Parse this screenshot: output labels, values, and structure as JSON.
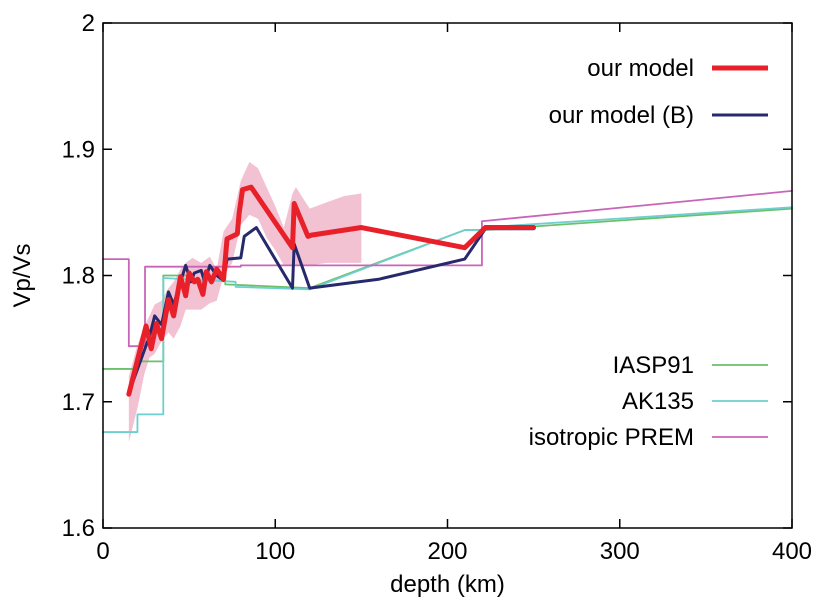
{
  "chart_data": {
    "type": "line",
    "title": "",
    "xlabel": "depth (km)",
    "ylabel": "Vp/Vs",
    "xlim": [
      0,
      400
    ],
    "ylim": [
      1.6,
      2.0
    ],
    "xticks": [
      0,
      100,
      200,
      300,
      400
    ],
    "xtick_labels": [
      "0",
      "100",
      "200",
      "300",
      "400"
    ],
    "yticks": [
      1.6,
      1.7,
      1.8,
      1.9,
      2.0
    ],
    "ytick_labels": [
      "1.6",
      "1.7",
      "1.8",
      "1.9",
      "2"
    ],
    "grid": false,
    "legend_groups": [
      {
        "placement": "top-right",
        "entries": [
          "our model",
          "our model (B)"
        ]
      },
      {
        "placement": "bottom-right",
        "entries": [
          "IASP91",
          "AK135",
          "isotropic PREM"
        ]
      }
    ],
    "uncertainty_band": {
      "name": "our model uncertainty",
      "color": "#f2c2d2",
      "x": [
        15,
        20,
        24,
        27,
        30,
        34,
        38,
        41,
        45,
        48,
        52,
        57,
        62,
        66,
        70,
        75,
        80,
        85,
        90,
        95,
        100,
        105,
        110,
        112,
        120,
        130,
        140,
        150
      ],
      "upper": [
        1.72,
        1.745,
        1.76,
        1.768,
        1.777,
        1.78,
        1.79,
        1.795,
        1.805,
        1.81,
        1.814,
        1.81,
        1.815,
        1.805,
        1.835,
        1.845,
        1.875,
        1.89,
        1.885,
        1.87,
        1.855,
        1.838,
        1.865,
        1.87,
        1.853,
        1.858,
        1.863,
        1.865
      ],
      "lower": [
        1.668,
        1.695,
        1.722,
        1.735,
        1.738,
        1.748,
        1.755,
        1.75,
        1.76,
        1.773,
        1.773,
        1.773,
        1.778,
        1.78,
        1.8,
        1.81,
        1.84,
        1.848,
        1.845,
        1.83,
        1.82,
        1.808,
        1.808,
        1.808,
        1.808,
        1.81,
        1.81,
        1.81
      ]
    },
    "series": [
      {
        "name": "our model",
        "color": "#e8202a",
        "width": 5,
        "x": [
          15,
          25,
          28,
          31,
          34,
          38,
          41,
          45,
          48,
          50,
          53,
          55,
          58,
          60,
          63,
          66,
          70,
          72,
          78,
          79,
          81,
          86,
          110,
          111,
          119,
          121,
          150,
          210,
          222,
          250
        ],
        "y": [
          1.706,
          1.76,
          1.742,
          1.762,
          1.75,
          1.781,
          1.768,
          1.799,
          1.784,
          1.802,
          1.795,
          1.797,
          1.785,
          1.803,
          1.795,
          1.805,
          1.797,
          1.829,
          1.833,
          1.849,
          1.868,
          1.87,
          1.822,
          1.857,
          1.831,
          1.832,
          1.838,
          1.822,
          1.838,
          1.838
        ]
      },
      {
        "name": "our model (B)",
        "color": "#27296d",
        "width": 3,
        "x": [
          15,
          27,
          30,
          34,
          38,
          41,
          45,
          48,
          51,
          53,
          57,
          59,
          62,
          66,
          70,
          72,
          80,
          82,
          89,
          110,
          111,
          120,
          160,
          210,
          222,
          250
        ],
        "y": [
          1.707,
          1.752,
          1.768,
          1.761,
          1.787,
          1.777,
          1.795,
          1.808,
          1.795,
          1.802,
          1.804,
          1.795,
          1.808,
          1.8,
          1.796,
          1.813,
          1.814,
          1.831,
          1.838,
          1.79,
          1.825,
          1.79,
          1.797,
          1.813,
          1.837,
          1.837
        ]
      },
      {
        "name": "IASP91",
        "color": "#6cc06c",
        "width": 1.8,
        "x": [
          0,
          20,
          20,
          35,
          35,
          50,
          50,
          71,
          71,
          120,
          120,
          210,
          210,
          220,
          220,
          400
        ],
        "y": [
          1.726,
          1.726,
          1.732,
          1.732,
          1.8,
          1.8,
          1.796,
          1.796,
          1.793,
          1.79,
          1.79,
          1.836,
          1.836,
          1.836,
          1.836,
          1.853
        ]
      },
      {
        "name": "AK135",
        "color": "#6dcfcf",
        "width": 1.8,
        "x": [
          0,
          20,
          20,
          35,
          35,
          77,
          77,
          120,
          120,
          210,
          210,
          220,
          220,
          400
        ],
        "y": [
          1.676,
          1.676,
          1.69,
          1.69,
          1.798,
          1.795,
          1.791,
          1.789,
          1.789,
          1.836,
          1.836,
          1.836,
          1.838,
          1.854
        ]
      },
      {
        "name": "isotropic PREM",
        "color": "#c965b8",
        "width": 1.8,
        "x": [
          0,
          15,
          15,
          24.4,
          24.4,
          80,
          80,
          220,
          220,
          400
        ],
        "y": [
          1.813,
          1.813,
          1.744,
          1.744,
          1.807,
          1.807,
          1.808,
          1.808,
          1.843,
          1.867
        ]
      }
    ]
  }
}
